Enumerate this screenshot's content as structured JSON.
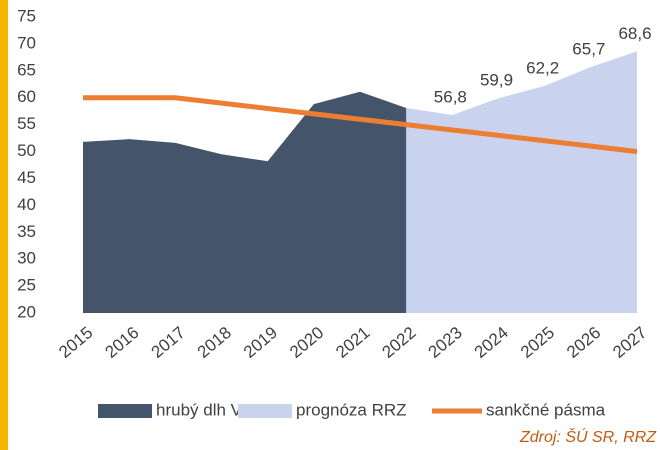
{
  "chart_data": {
    "type": "area",
    "categories": [
      "2015",
      "2016",
      "2017",
      "2018",
      "2019",
      "2020",
      "2021",
      "2022",
      "2023",
      "2024",
      "2025",
      "2026",
      "2027"
    ],
    "series": [
      {
        "name": "hrubý dlh VS",
        "color": "#44546a",
        "type": "area",
        "values": [
          51.8,
          52.3,
          51.6,
          49.5,
          48.2,
          58.8,
          61.1,
          58.1,
          null,
          null,
          null,
          null,
          null
        ]
      },
      {
        "name": "prognóza RRZ",
        "color": "#c9d3ee",
        "type": "area",
        "values": [
          null,
          null,
          null,
          null,
          null,
          null,
          null,
          58.1,
          56.8,
          59.9,
          62.2,
          65.7,
          68.6
        ],
        "value_labels": [
          null,
          null,
          null,
          null,
          null,
          null,
          null,
          null,
          "56,8",
          "59,9",
          "62,2",
          "65,7",
          "68,6"
        ]
      },
      {
        "name": "sankčné pásma",
        "color": "#ed7d31",
        "type": "line",
        "values": [
          60,
          60,
          60,
          59,
          58,
          57,
          56,
          55,
          54,
          53,
          52,
          51,
          50
        ]
      }
    ],
    "ylim": [
      20,
      75
    ],
    "yticks": [
      20,
      25,
      30,
      35,
      40,
      45,
      50,
      55,
      60,
      65,
      70,
      75
    ],
    "grid": false,
    "source": "Zdroj: ŠÚ SR, RRZ"
  }
}
